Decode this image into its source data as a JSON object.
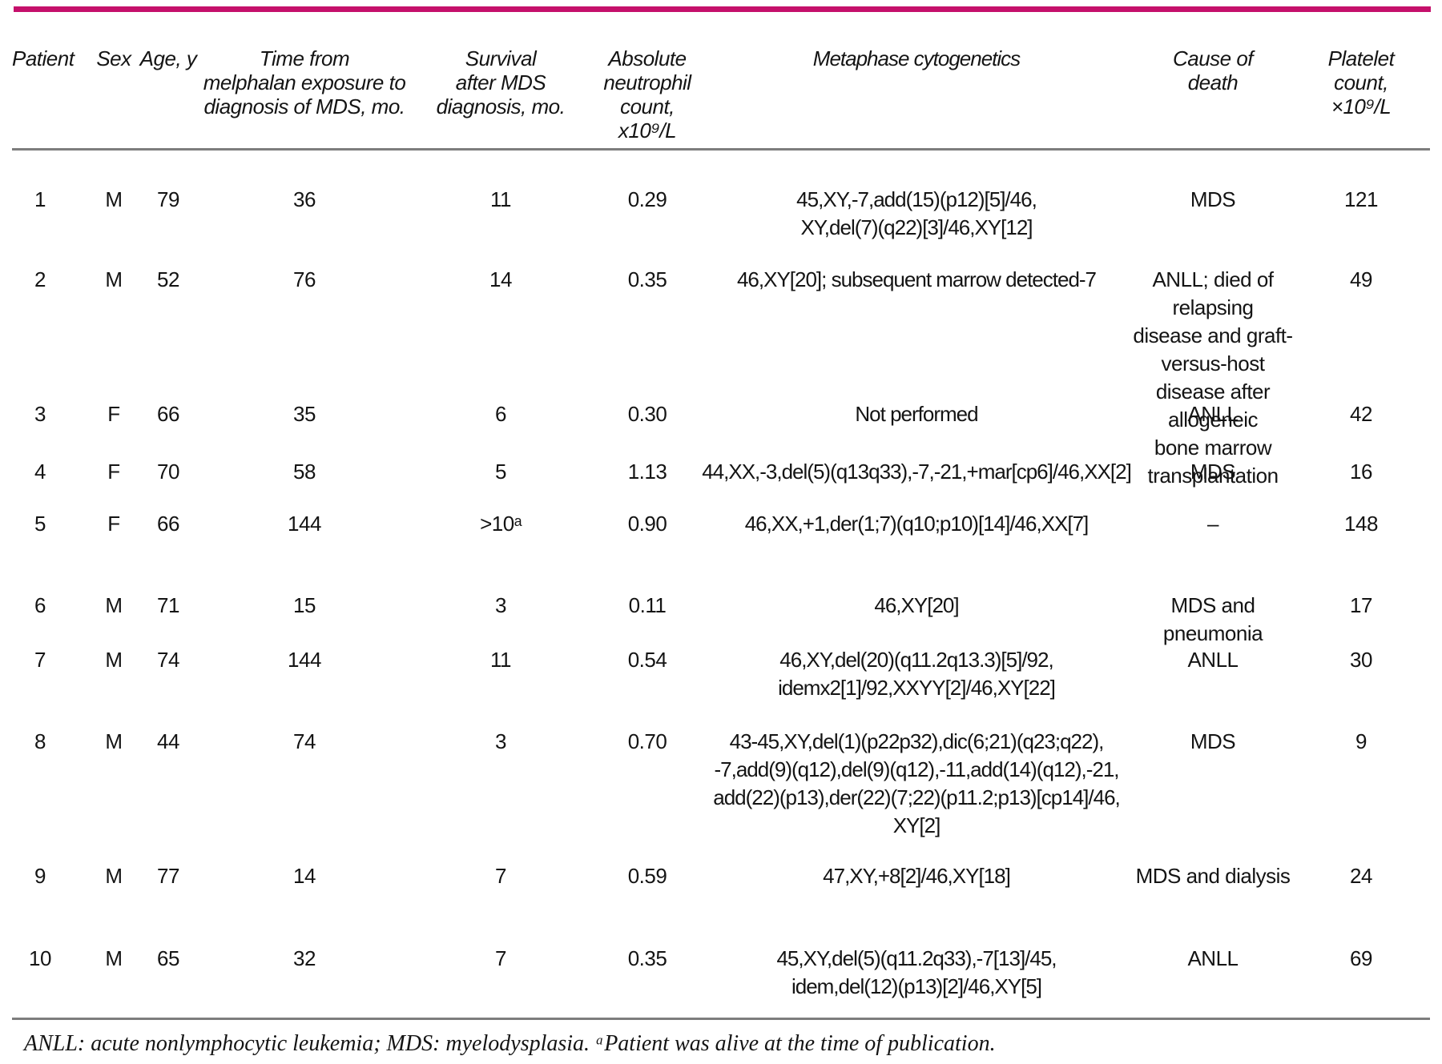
{
  "colors": {
    "accent": "#C5106B",
    "rule": "#7d7d7d"
  },
  "table": {
    "headers": {
      "patient": "Patient",
      "sex": "Sex",
      "age": "Age, y",
      "time": "Time from\nmelphalan exposure to\ndiagnosis of MDS, mo.",
      "survival": "Survival\nafter MDS\ndiagnosis, mo.",
      "anc": "Absolute\nneutrophil\ncount, x10⁹/L",
      "cytogenetics": "Metaphase cytogenetics",
      "cause": "Cause of\ndeath",
      "platelet": "Platelet\ncount, ×10⁹/L"
    },
    "rows": [
      {
        "patient": "1",
        "sex": "M",
        "age": "79",
        "time": "36",
        "survival": "11",
        "anc": "0.29",
        "cytogenetics": "45,XY,-7,add(15)(p12)[5]/46,\nXY,del(7)(q22)[3]/46,XY[12]",
        "cause": "MDS",
        "platelet": "121"
      },
      {
        "patient": "2",
        "sex": "M",
        "age": "52",
        "time": "76",
        "survival": "14",
        "anc": "0.35",
        "cytogenetics": "46,XY[20]; subsequent marrow detected-7",
        "cause": "ANLL; died of\nrelapsing\ndisease and graft-versus-host\ndisease after allogeneic\nbone marrow transplantation",
        "platelet": "49"
      },
      {
        "patient": "3",
        "sex": "F",
        "age": "66",
        "time": "35",
        "survival": "6",
        "anc": "0.30",
        "cytogenetics": "Not performed",
        "cause": "ANLL",
        "platelet": "42"
      },
      {
        "patient": "4",
        "sex": "F",
        "age": "70",
        "time": "58",
        "survival": "5",
        "anc": "1.13",
        "cytogenetics": "44,XX,-3,del(5)(q13q33),-7,-21,+mar[cp6]/46,XX[2]",
        "cause": "MDS",
        "platelet": "16"
      },
      {
        "patient": "5",
        "sex": "F",
        "age": "66",
        "time": "144",
        "survival": ">10ᵃ",
        "anc": "0.90",
        "cytogenetics": "46,XX,+1,der(1;7)(q10;p10)[14]/46,XX[7]",
        "cause": "–",
        "platelet": "148"
      },
      {
        "patient": "6",
        "sex": "M",
        "age": "71",
        "time": "15",
        "survival": "3",
        "anc": "0.11",
        "cytogenetics": "46,XY[20]",
        "cause": "MDS and pneumonia",
        "platelet": "17"
      },
      {
        "patient": "7",
        "sex": "M",
        "age": "74",
        "time": "144",
        "survival": "11",
        "anc": "0.54",
        "cytogenetics": "46,XY,del(20)(q11.2q13.3)[5]/92,\nidemx2[1]/92,XXYY[2]/46,XY[22]",
        "cause": "ANLL",
        "platelet": "30"
      },
      {
        "patient": "8",
        "sex": "M",
        "age": "44",
        "time": "74",
        "survival": "3",
        "anc": "0.70",
        "cytogenetics": "43-45,XY,del(1)(p22p32),dic(6;21)(q23;q22),\n-7,add(9)(q12),del(9)(q12),-11,add(14)(q12),-21,\nadd(22)(p13),der(22)(7;22)(p11.2;p13)[cp14]/46, XY[2]",
        "cause": "MDS",
        "platelet": "9"
      },
      {
        "patient": "9",
        "sex": "M",
        "age": "77",
        "time": "14",
        "survival": "7",
        "anc": "0.59",
        "cytogenetics": "47,XY,+8[2]/46,XY[18]",
        "cause": "MDS and dialysis",
        "platelet": "24"
      },
      {
        "patient": "10",
        "sex": "M",
        "age": "65",
        "time": "32",
        "survival": "7",
        "anc": "0.35",
        "cytogenetics": "45,XY,del(5)(q11.2q33),-7[13]/45,\nidem,del(12)(p13)[2]/46,XY[5]",
        "cause": "ANLL",
        "platelet": "69"
      }
    ]
  },
  "footnote": "ANLL: acute nonlymphocytic leukemia; MDS: myelodysplasia. ᵃPatient was alive at the time of publication."
}
